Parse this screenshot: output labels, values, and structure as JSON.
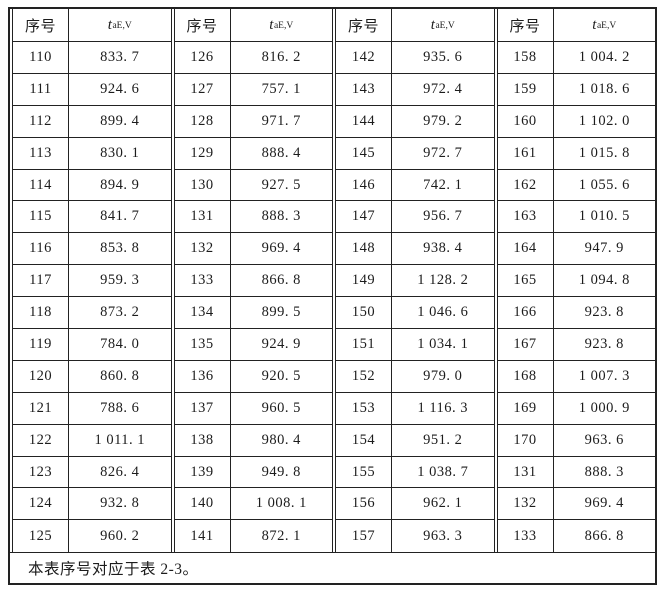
{
  "table": {
    "header": {
      "index_label": "序号",
      "value_symbol": "t",
      "value_subscript": "aE,V"
    },
    "groups": [
      {
        "rows": [
          {
            "no": "110",
            "value": "833. 7"
          },
          {
            "no": "111",
            "value": "924. 6"
          },
          {
            "no": "112",
            "value": "899. 4"
          },
          {
            "no": "113",
            "value": "830. 1"
          },
          {
            "no": "114",
            "value": "894. 9"
          },
          {
            "no": "115",
            "value": "841. 7"
          },
          {
            "no": "116",
            "value": "853. 8"
          },
          {
            "no": "117",
            "value": "959. 3"
          },
          {
            "no": "118",
            "value": "873. 2"
          },
          {
            "no": "119",
            "value": "784. 0"
          },
          {
            "no": "120",
            "value": "860. 8"
          },
          {
            "no": "121",
            "value": "788. 6"
          },
          {
            "no": "122",
            "value": "1 011. 1"
          },
          {
            "no": "123",
            "value": "826. 4"
          },
          {
            "no": "124",
            "value": "932. 8"
          },
          {
            "no": "125",
            "value": "960. 2"
          }
        ]
      },
      {
        "rows": [
          {
            "no": "126",
            "value": "816. 2"
          },
          {
            "no": "127",
            "value": "757. 1"
          },
          {
            "no": "128",
            "value": "971. 7"
          },
          {
            "no": "129",
            "value": "888. 4"
          },
          {
            "no": "130",
            "value": "927. 5"
          },
          {
            "no": "131",
            "value": "888. 3"
          },
          {
            "no": "132",
            "value": "969. 4"
          },
          {
            "no": "133",
            "value": "866. 8"
          },
          {
            "no": "134",
            "value": "899. 5"
          },
          {
            "no": "135",
            "value": "924. 9"
          },
          {
            "no": "136",
            "value": "920. 5"
          },
          {
            "no": "137",
            "value": "960. 5"
          },
          {
            "no": "138",
            "value": "980. 4"
          },
          {
            "no": "139",
            "value": "949. 8"
          },
          {
            "no": "140",
            "value": "1 008. 1"
          },
          {
            "no": "141",
            "value": "872. 1"
          }
        ]
      },
      {
        "rows": [
          {
            "no": "142",
            "value": "935. 6"
          },
          {
            "no": "143",
            "value": "972. 4"
          },
          {
            "no": "144",
            "value": "979. 2"
          },
          {
            "no": "145",
            "value": "972. 7"
          },
          {
            "no": "146",
            "value": "742. 1"
          },
          {
            "no": "147",
            "value": "956. 7"
          },
          {
            "no": "148",
            "value": "938. 4"
          },
          {
            "no": "149",
            "value": "1 128. 2"
          },
          {
            "no": "150",
            "value": "1 046. 6"
          },
          {
            "no": "151",
            "value": "1 034. 1"
          },
          {
            "no": "152",
            "value": "979. 0"
          },
          {
            "no": "153",
            "value": "1 116. 3"
          },
          {
            "no": "154",
            "value": "951. 2"
          },
          {
            "no": "155",
            "value": "1 038. 7"
          },
          {
            "no": "156",
            "value": "962. 1"
          },
          {
            "no": "157",
            "value": "963. 3"
          }
        ]
      },
      {
        "rows": [
          {
            "no": "158",
            "value": "1 004. 2"
          },
          {
            "no": "159",
            "value": "1 018. 6"
          },
          {
            "no": "160",
            "value": "1 102. 0"
          },
          {
            "no": "161",
            "value": "1 015. 8"
          },
          {
            "no": "162",
            "value": "1 055. 6"
          },
          {
            "no": "163",
            "value": "1 010. 5"
          },
          {
            "no": "164",
            "value": "947. 9"
          },
          {
            "no": "165",
            "value": "1 094. 8"
          },
          {
            "no": "166",
            "value": "923. 8"
          },
          {
            "no": "167",
            "value": "923. 8"
          },
          {
            "no": "168",
            "value": "1 007. 3"
          },
          {
            "no": "169",
            "value": "1 000. 9"
          },
          {
            "no": "170",
            "value": "963. 6"
          },
          {
            "no": "131",
            "value": "888. 3"
          },
          {
            "no": "132",
            "value": "969. 4"
          },
          {
            "no": "133",
            "value": "866. 8"
          }
        ]
      }
    ],
    "footnote": "本表序号对应于表 2-3。"
  }
}
